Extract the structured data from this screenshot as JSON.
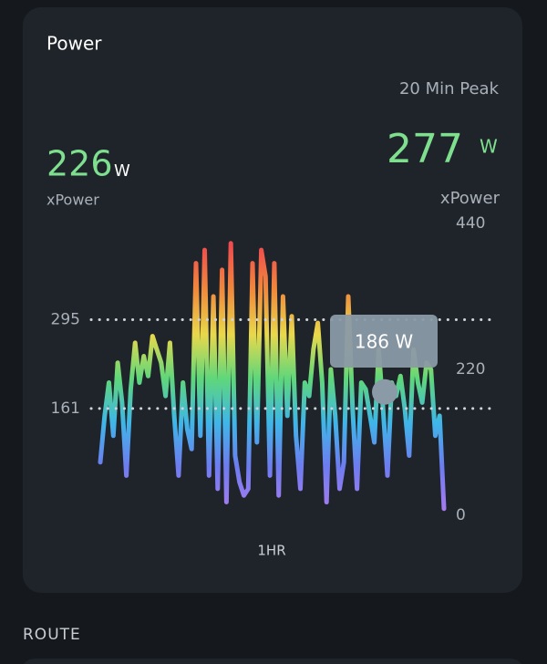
{
  "card_title": "Power",
  "current": {
    "value": 226,
    "unit": "W",
    "label": "xPower"
  },
  "peak": {
    "heading": "20 Min Peak",
    "value": 277,
    "unit": "W",
    "label": "xPower"
  },
  "chart_data": {
    "type": "line",
    "values": [
      80,
      150,
      200,
      120,
      230,
      170,
      60,
      190,
      260,
      200,
      240,
      210,
      270,
      250,
      230,
      180,
      260,
      150,
      60,
      200,
      130,
      100,
      380,
      120,
      400,
      60,
      330,
      40,
      370,
      20,
      410,
      90,
      50,
      30,
      40,
      380,
      110,
      400,
      360,
      60,
      380,
      30,
      330,
      150,
      300,
      120,
      40,
      200,
      180,
      250,
      290,
      200,
      20,
      220,
      150,
      40,
      80,
      330,
      160,
      40,
      200,
      190,
      150,
      110,
      250,
      160,
      60,
      200,
      180,
      210,
      160,
      90,
      250,
      200,
      170,
      230,
      220,
      120,
      150,
      10
    ],
    "ylim": [
      0,
      440
    ],
    "yticks": [
      0,
      220,
      440
    ],
    "reference_lines": [
      295,
      161
    ],
    "tooltip": {
      "value": 186,
      "label": "186 W"
    },
    "xlabel": "1HR",
    "colors": [
      "#ef4d4d",
      "#f08a3c",
      "#e9d84a",
      "#5fd77a",
      "#3fb6e8",
      "#6d7cf0",
      "#a77bf0"
    ]
  },
  "section_heading": "ROUTE"
}
